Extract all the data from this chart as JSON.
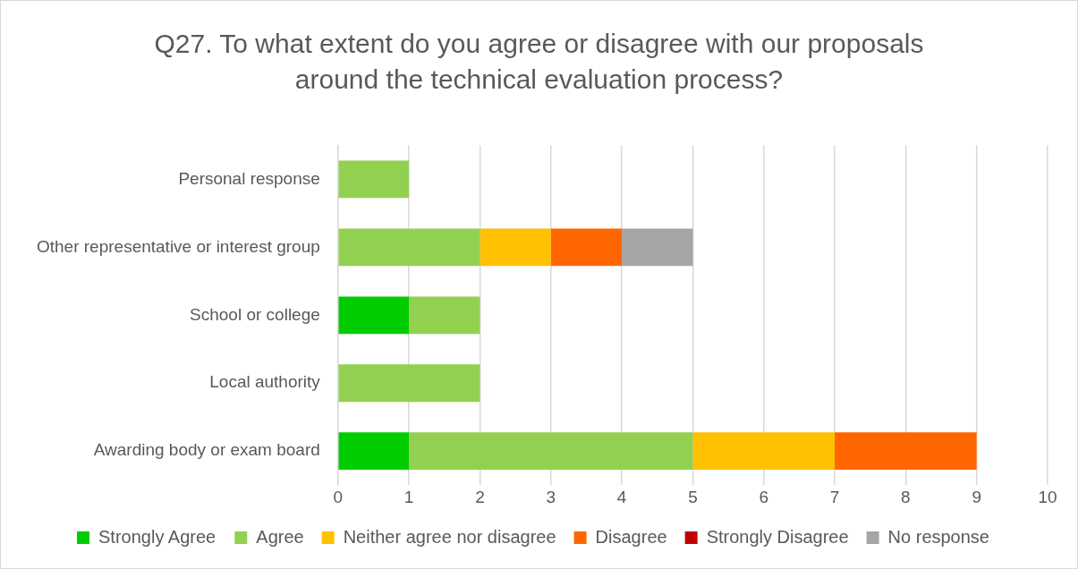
{
  "chart_data": {
    "type": "bar",
    "orientation": "horizontal",
    "stacked": true,
    "title": "Q27. To what extent do you agree or disagree with our proposals around the technical evaluation process?",
    "categories": [
      "Personal response",
      "Other representative or interest group",
      "School or college",
      "Local authority",
      "Awarding body or exam board"
    ],
    "series": [
      {
        "name": "Strongly Agree",
        "color": "#00cc00",
        "values": [
          0,
          0,
          1,
          0,
          1
        ]
      },
      {
        "name": "Agree",
        "color": "#92d050",
        "values": [
          1,
          2,
          1,
          2,
          4
        ]
      },
      {
        "name": "Neither agree nor disagree",
        "color": "#ffc000",
        "values": [
          0,
          1,
          0,
          0,
          2
        ]
      },
      {
        "name": "Disagree",
        "color": "#ff6600",
        "values": [
          0,
          1,
          0,
          0,
          2
        ]
      },
      {
        "name": "Strongly Disagree",
        "color": "#c00000",
        "values": [
          0,
          0,
          0,
          0,
          0
        ]
      },
      {
        "name": "No response",
        "color": "#a5a5a5",
        "values": [
          0,
          1,
          0,
          0,
          0
        ]
      }
    ],
    "xlim": [
      0,
      10
    ],
    "xticks": [
      0,
      1,
      2,
      3,
      4,
      5,
      6,
      7,
      8,
      9,
      10
    ],
    "grid": "x",
    "legend": "bottom"
  }
}
